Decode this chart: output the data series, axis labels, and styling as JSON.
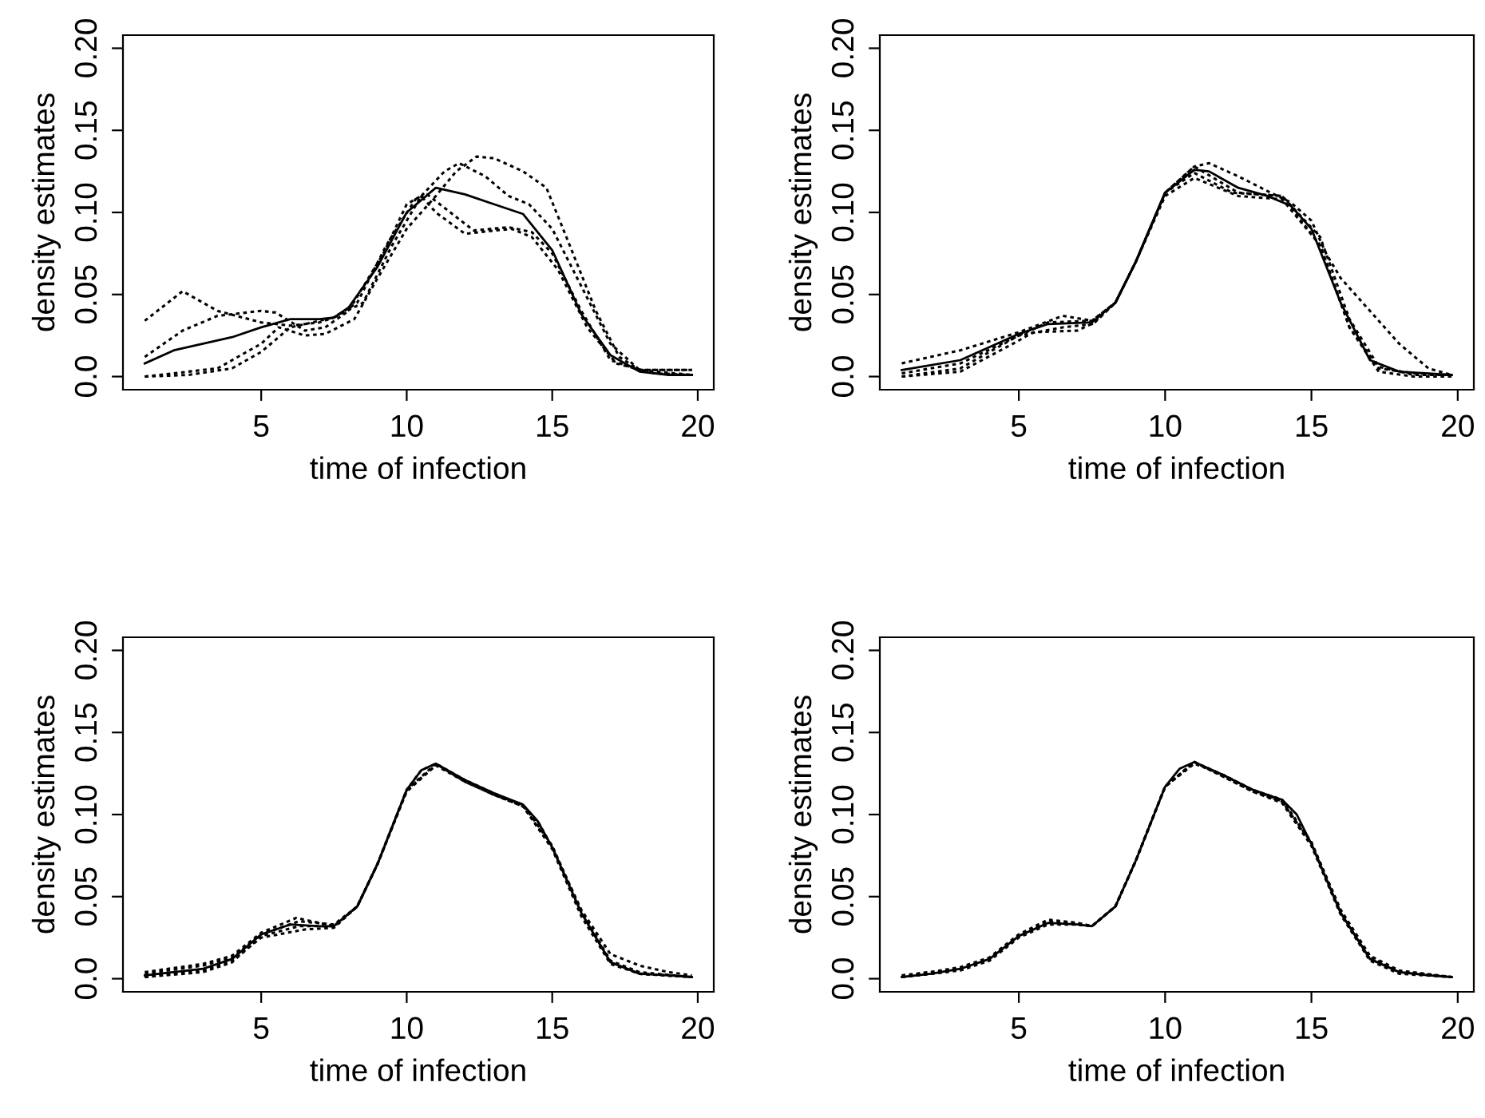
{
  "chart_data": [
    {
      "type": "line",
      "xlabel": "time of infection",
      "ylabel": "density estimates",
      "xlim": [
        0.25,
        20.55
      ],
      "ylim": [
        -0.008,
        0.208
      ],
      "xticks": [
        5,
        10,
        15,
        20
      ],
      "yticks": [
        {
          "value": 0,
          "label": "0.0"
        },
        {
          "value": 0.05,
          "label": "0.05"
        },
        {
          "value": 0.1,
          "label": "0.10"
        },
        {
          "value": 0.15,
          "label": "0.15"
        },
        {
          "value": 0.2,
          "label": "0.20"
        }
      ],
      "series": [
        {
          "color": "#000000",
          "line_style": "solid",
          "x": [
            1,
            2,
            3,
            4,
            5,
            6,
            7,
            7.5,
            8,
            9,
            10,
            11,
            12,
            13,
            14,
            15,
            16,
            17,
            18,
            19,
            19.8
          ],
          "values": [
            0.008,
            0.016,
            0.02,
            0.024,
            0.03,
            0.035,
            0.035,
            0.036,
            0.042,
            0.067,
            0.1,
            0.115,
            0.111,
            0.105,
            0.099,
            0.077,
            0.038,
            0.013,
            0.003,
            0.001,
            0.001
          ]
        },
        {
          "color": "#000000",
          "line_style": "dotted",
          "x": [
            1,
            2.3,
            3.5,
            5,
            6,
            7,
            7.5,
            8.3,
            9.3,
            10.3,
            10.7,
            11.5,
            12.3,
            13.5,
            14.3,
            15,
            16,
            17,
            18,
            19.8
          ],
          "values": [
            0.034,
            0.052,
            0.04,
            0.033,
            0.031,
            0.033,
            0.036,
            0.045,
            0.08,
            0.108,
            0.111,
            0.1,
            0.089,
            0.091,
            0.088,
            0.075,
            0.04,
            0.01,
            0.004,
            0.004
          ]
        },
        {
          "color": "#000000",
          "line_style": "dotted",
          "x": [
            1,
            2.3,
            3.5,
            5,
            5.5,
            6.5,
            7.2,
            8,
            9.2,
            10,
            10.5,
            11,
            12,
            13.6,
            14.3,
            15.2,
            16.2,
            17.2,
            18.5,
            19.8
          ],
          "values": [
            0.012,
            0.028,
            0.037,
            0.04,
            0.039,
            0.028,
            0.03,
            0.04,
            0.075,
            0.105,
            0.11,
            0.1,
            0.087,
            0.09,
            0.085,
            0.065,
            0.03,
            0.008,
            0.002,
            0.001
          ]
        },
        {
          "color": "#000000",
          "line_style": "dotted",
          "x": [
            1,
            2.5,
            4,
            5,
            6,
            7,
            7.5,
            8.5,
            9.5,
            10.5,
            11.3,
            11.8,
            12.7,
            13.5,
            14.2,
            15,
            16,
            17,
            18,
            19.8
          ],
          "values": [
            0.0,
            0.001,
            0.005,
            0.015,
            0.03,
            0.034,
            0.036,
            0.045,
            0.08,
            0.11,
            0.125,
            0.13,
            0.122,
            0.11,
            0.105,
            0.09,
            0.055,
            0.02,
            0.004,
            0.001
          ]
        },
        {
          "color": "#000000",
          "line_style": "dotted",
          "x": [
            1,
            3.5,
            5,
            5.6,
            6.5,
            7.2,
            8.2,
            9,
            10,
            11,
            11.7,
            12.4,
            13,
            14,
            14.8,
            15.6,
            16.5,
            17.3,
            18,
            19.8
          ],
          "values": [
            0.0,
            0.005,
            0.02,
            0.03,
            0.025,
            0.026,
            0.035,
            0.06,
            0.09,
            0.11,
            0.125,
            0.134,
            0.133,
            0.125,
            0.115,
            0.08,
            0.04,
            0.012,
            0.004,
            0.004
          ]
        }
      ]
    },
    {
      "type": "line",
      "xlabel": "time of infection",
      "ylabel": "density estimates",
      "xlim": [
        0.25,
        20.55
      ],
      "ylim": [
        -0.008,
        0.208
      ],
      "xticks": [
        5,
        10,
        15,
        20
      ],
      "yticks": [
        {
          "value": 0,
          "label": "0.0"
        },
        {
          "value": 0.05,
          "label": "0.05"
        },
        {
          "value": 0.1,
          "label": "0.10"
        },
        {
          "value": 0.15,
          "label": "0.15"
        },
        {
          "value": 0.2,
          "label": "0.20"
        }
      ],
      "series": [
        {
          "color": "#000000",
          "line_style": "solid",
          "x": [
            1,
            3,
            5,
            6,
            7.5,
            8.3,
            9,
            10,
            11,
            11.5,
            12.5,
            13.5,
            14.3,
            15,
            16,
            17,
            18,
            19.8
          ],
          "values": [
            0.004,
            0.01,
            0.026,
            0.032,
            0.033,
            0.045,
            0.07,
            0.112,
            0.126,
            0.125,
            0.115,
            0.11,
            0.104,
            0.09,
            0.045,
            0.01,
            0.003,
            0.001
          ]
        },
        {
          "color": "#000000",
          "line_style": "dotted",
          "x": [
            1,
            3,
            5,
            6,
            7.5,
            8.3,
            9,
            10,
            11,
            11.5,
            12.5,
            13.5,
            14.3,
            15,
            15.5,
            16,
            17,
            18,
            19,
            19.8
          ],
          "values": [
            0.002,
            0.008,
            0.025,
            0.033,
            0.034,
            0.045,
            0.07,
            0.112,
            0.128,
            0.13,
            0.122,
            0.113,
            0.106,
            0.095,
            0.075,
            0.06,
            0.04,
            0.02,
            0.005,
            0.001
          ]
        },
        {
          "color": "#000000",
          "line_style": "dotted",
          "x": [
            1,
            3,
            5,
            6.5,
            7.5,
            8.3,
            9,
            10,
            11,
            12.5,
            14,
            15.3,
            16.3,
            17.3,
            18.5,
            19.8
          ],
          "values": [
            0.008,
            0.016,
            0.027,
            0.037,
            0.034,
            0.045,
            0.07,
            0.112,
            0.128,
            0.112,
            0.11,
            0.08,
            0.03,
            0.005,
            0.002,
            0.001
          ]
        },
        {
          "color": "#000000",
          "line_style": "dotted",
          "x": [
            1,
            3,
            5,
            6.5,
            7.5,
            8.3,
            9,
            10,
            11,
            12.3,
            14,
            15.3,
            16.3,
            17.3,
            18.5,
            19.8
          ],
          "values": [
            0.0,
            0.005,
            0.025,
            0.03,
            0.032,
            0.045,
            0.07,
            0.112,
            0.124,
            0.112,
            0.11,
            0.085,
            0.035,
            0.006,
            0.001,
            0.001
          ]
        },
        {
          "color": "#000000",
          "line_style": "dotted",
          "x": [
            1,
            3,
            4.8,
            5.5,
            7,
            7.6,
            8.3,
            9,
            10,
            11,
            12.5,
            14,
            15.3,
            16.3,
            17.3,
            18.5,
            19.8
          ],
          "values": [
            0.0,
            0.003,
            0.02,
            0.027,
            0.028,
            0.033,
            0.045,
            0.07,
            0.11,
            0.121,
            0.11,
            0.108,
            0.08,
            0.03,
            0.003,
            0.0,
            0.0
          ]
        }
      ]
    },
    {
      "type": "line",
      "xlabel": "time of infection",
      "ylabel": "density estimates",
      "xlim": [
        0.25,
        20.55
      ],
      "ylim": [
        -0.008,
        0.208
      ],
      "xticks": [
        5,
        10,
        15,
        20
      ],
      "yticks": [
        {
          "value": 0,
          "label": "0.0"
        },
        {
          "value": 0.05,
          "label": "0.05"
        },
        {
          "value": 0.1,
          "label": "0.10"
        },
        {
          "value": 0.15,
          "label": "0.15"
        },
        {
          "value": 0.2,
          "label": "0.20"
        }
      ],
      "series": [
        {
          "color": "#000000",
          "line_style": "solid",
          "x": [
            1,
            3,
            4,
            5,
            6,
            7,
            7.5,
            8.3,
            9,
            10,
            10.5,
            11,
            12,
            13,
            14,
            14.5,
            15,
            16,
            17,
            18,
            19,
            19.8
          ],
          "values": [
            0.002,
            0.006,
            0.012,
            0.027,
            0.033,
            0.032,
            0.032,
            0.044,
            0.07,
            0.115,
            0.127,
            0.131,
            0.121,
            0.113,
            0.106,
            0.096,
            0.08,
            0.04,
            0.01,
            0.003,
            0.002,
            0.001
          ]
        },
        {
          "color": "#000000",
          "line_style": "dotted",
          "x": [
            1,
            3,
            4,
            5,
            6.2,
            7,
            7.5,
            8.3,
            9,
            10,
            10.5,
            11,
            12,
            13,
            14,
            14.5,
            15,
            16,
            17,
            18,
            19,
            19.8
          ],
          "values": [
            0.004,
            0.009,
            0.014,
            0.028,
            0.037,
            0.034,
            0.032,
            0.044,
            0.07,
            0.115,
            0.127,
            0.131,
            0.121,
            0.112,
            0.105,
            0.096,
            0.08,
            0.042,
            0.015,
            0.008,
            0.004,
            0.002
          ]
        },
        {
          "color": "#000000",
          "line_style": "dotted",
          "x": [
            1,
            3,
            4,
            5,
            6.5,
            7.5,
            8.3,
            9,
            10,
            11,
            12,
            13,
            14,
            15,
            16,
            17,
            18,
            19.8
          ],
          "values": [
            0.001,
            0.005,
            0.011,
            0.025,
            0.03,
            0.031,
            0.044,
            0.07,
            0.114,
            0.13,
            0.12,
            0.112,
            0.105,
            0.08,
            0.04,
            0.01,
            0.003,
            0.001
          ]
        },
        {
          "color": "#000000",
          "line_style": "dotted",
          "x": [
            1,
            3,
            4,
            5,
            6.3,
            7.5,
            8.3,
            9,
            10,
            11,
            12,
            13,
            14,
            15,
            16,
            17,
            18,
            19.8
          ],
          "values": [
            0.003,
            0.008,
            0.013,
            0.027,
            0.035,
            0.033,
            0.044,
            0.07,
            0.115,
            0.13,
            0.121,
            0.113,
            0.105,
            0.079,
            0.038,
            0.009,
            0.003,
            0.001
          ]
        },
        {
          "color": "#000000",
          "line_style": "dotted",
          "x": [
            1,
            3,
            4,
            5,
            6.3,
            7.5,
            8.3,
            9,
            10,
            11,
            12,
            13,
            14,
            15,
            16,
            17,
            18,
            19.8
          ],
          "values": [
            0.001,
            0.004,
            0.01,
            0.026,
            0.032,
            0.032,
            0.044,
            0.07,
            0.115,
            0.131,
            0.12,
            0.112,
            0.106,
            0.081,
            0.041,
            0.011,
            0.004,
            0.001
          ]
        }
      ]
    },
    {
      "type": "line",
      "xlabel": "time of infection",
      "ylabel": "density estimates",
      "xlim": [
        0.25,
        20.55
      ],
      "ylim": [
        -0.008,
        0.208
      ],
      "xticks": [
        5,
        10,
        15,
        20
      ],
      "yticks": [
        {
          "value": 0,
          "label": "0.0"
        },
        {
          "value": 0.05,
          "label": "0.05"
        },
        {
          "value": 0.1,
          "label": "0.10"
        },
        {
          "value": 0.15,
          "label": "0.15"
        },
        {
          "value": 0.2,
          "label": "0.20"
        }
      ],
      "series": [
        {
          "color": "#000000",
          "line_style": "solid",
          "x": [
            1,
            2,
            3,
            4,
            5,
            6,
            7,
            7.5,
            8.3,
            9,
            10,
            10.5,
            11,
            12,
            13,
            14,
            14.5,
            15,
            16,
            17,
            18,
            19,
            19.8
          ],
          "values": [
            0.001,
            0.003,
            0.006,
            0.012,
            0.026,
            0.034,
            0.033,
            0.032,
            0.044,
            0.072,
            0.117,
            0.128,
            0.132,
            0.124,
            0.115,
            0.109,
            0.1,
            0.082,
            0.04,
            0.012,
            0.004,
            0.002,
            0.001
          ]
        },
        {
          "color": "#000000",
          "line_style": "dotted",
          "x": [
            1,
            2,
            3,
            4,
            5,
            6,
            7,
            7.5,
            8.3,
            9,
            10,
            11,
            12,
            13,
            14,
            15,
            16,
            17,
            18,
            19.8
          ],
          "values": [
            0.002,
            0.004,
            0.007,
            0.013,
            0.027,
            0.036,
            0.034,
            0.032,
            0.044,
            0.072,
            0.117,
            0.132,
            0.123,
            0.114,
            0.108,
            0.083,
            0.042,
            0.014,
            0.005,
            0.001
          ]
        },
        {
          "color": "#000000",
          "line_style": "dotted",
          "x": [
            1,
            2,
            3,
            4,
            5,
            6,
            7,
            7.5,
            8.3,
            9,
            10,
            11,
            12,
            13,
            14,
            15,
            16,
            17,
            18,
            19.8
          ],
          "values": [
            0.001,
            0.003,
            0.005,
            0.011,
            0.025,
            0.033,
            0.033,
            0.032,
            0.044,
            0.072,
            0.117,
            0.132,
            0.123,
            0.114,
            0.107,
            0.081,
            0.039,
            0.011,
            0.003,
            0.001
          ]
        },
        {
          "color": "#000000",
          "line_style": "dotted",
          "x": [
            1,
            2,
            3,
            4,
            5,
            6,
            7,
            7.5,
            8.3,
            9,
            10,
            11,
            12,
            13,
            14,
            15,
            16,
            17,
            18,
            19.8
          ],
          "values": [
            0.002,
            0.004,
            0.006,
            0.012,
            0.026,
            0.035,
            0.034,
            0.032,
            0.044,
            0.072,
            0.117,
            0.132,
            0.124,
            0.115,
            0.109,
            0.083,
            0.041,
            0.013,
            0.004,
            0.001
          ]
        },
        {
          "color": "#000000",
          "line_style": "dotted",
          "x": [
            1,
            2,
            3,
            4,
            5,
            6,
            7,
            7.5,
            8.3,
            9,
            10,
            11,
            12,
            13,
            14,
            15,
            16,
            17,
            18,
            19.8
          ],
          "values": [
            0.001,
            0.003,
            0.006,
            0.012,
            0.026,
            0.034,
            0.033,
            0.032,
            0.044,
            0.072,
            0.117,
            0.131,
            0.124,
            0.115,
            0.108,
            0.082,
            0.04,
            0.012,
            0.004,
            0.001
          ]
        }
      ]
    }
  ]
}
